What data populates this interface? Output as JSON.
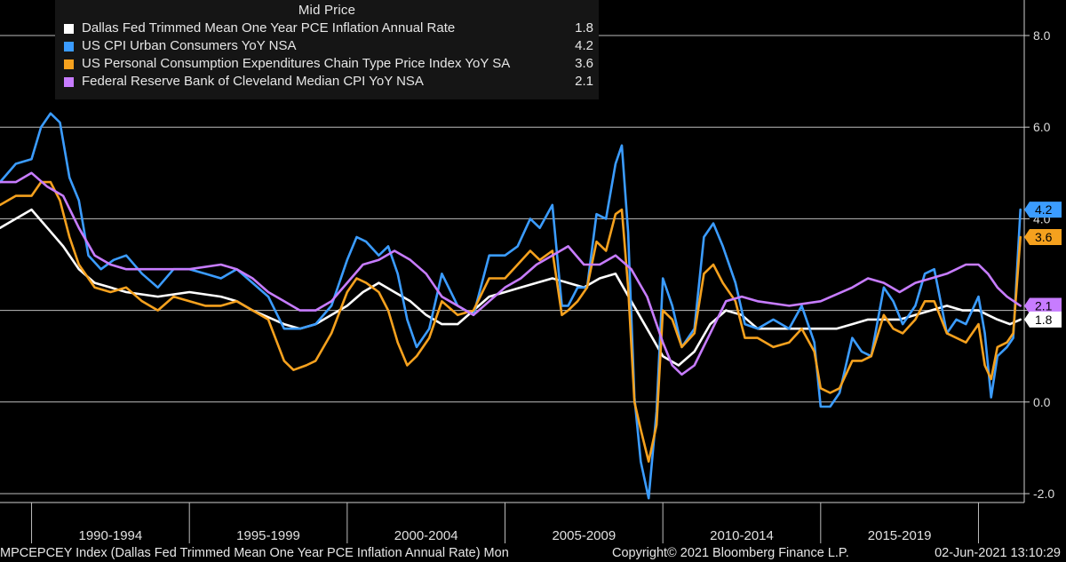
{
  "legend": {
    "title": "Mid Price",
    "items": [
      {
        "name": "Dallas Fed Trimmed Mean One Year PCE Inflation Annual Rate",
        "value": "1.8",
        "color": "#ffffff"
      },
      {
        "name": "US CPI Urban Consumers YoY NSA",
        "value": "4.2",
        "color": "#3b9cff"
      },
      {
        "name": "US Personal Consumption Expenditures Chain Type Price Index YoY SA",
        "value": "3.6",
        "color": "#f5a11e"
      },
      {
        "name": "Federal Reserve Bank of Cleveland Median CPI YoY NSA",
        "value": "2.1",
        "color": "#c77cff"
      }
    ]
  },
  "footer": {
    "ticker": "MPCEPCEY Index (Dallas Fed Trimmed Mean One Year PCE Inflation Annual Rate)  Mon",
    "copyright": "Copyright© 2021 Bloomberg Finance L.P.",
    "timestamp": "02-Jun-2021 13:10:29"
  },
  "chart_data": {
    "type": "line",
    "x_unit": "year",
    "xlim": [
      1989.0,
      2021.45
    ],
    "ylim": [
      -2.1,
      8.8
    ],
    "y_ticks": [
      8.0,
      6.0,
      4.0,
      2.0,
      0.0,
      -2.0
    ],
    "y_tick_labels": [
      "8.0",
      "6.0",
      "4.0",
      "2.0",
      "0.0",
      "-2.0"
    ],
    "x_periods": [
      {
        "label": "1990-1994",
        "start": 1990,
        "end": 1995
      },
      {
        "label": "1995-1999",
        "start": 1995,
        "end": 2000
      },
      {
        "label": "2000-2004",
        "start": 2000,
        "end": 2005
      },
      {
        "label": "2005-2009",
        "start": 2005,
        "end": 2010
      },
      {
        "label": "2010-2014",
        "start": 2010,
        "end": 2015
      },
      {
        "label": "2015-2019",
        "start": 2015,
        "end": 2020
      }
    ],
    "grid": true,
    "last_value_tags": [
      {
        "series": 1,
        "label": "4.2"
      },
      {
        "series": 2,
        "label": "3.6"
      },
      {
        "series": 3,
        "label": "2.1"
      },
      {
        "series": 0,
        "label": "1.8"
      }
    ],
    "series": [
      {
        "name": "Dallas Fed Trimmed Mean One Year PCE Inflation Annual Rate",
        "color": "#ffffff",
        "x": [
          1989.0,
          1989.5,
          1990.0,
          1990.5,
          1991.0,
          1991.5,
          1992.0,
          1992.5,
          1993.0,
          1994.0,
          1995.0,
          1996.0,
          1996.5,
          1997.0,
          1998.0,
          1998.5,
          1999.0,
          2000.0,
          2000.5,
          2001.0,
          2001.5,
          2002.0,
          2002.5,
          2003.0,
          2003.5,
          2004.0,
          2004.5,
          2005.0,
          2005.5,
          2006.0,
          2006.5,
          2007.0,
          2007.5,
          2008.0,
          2008.5,
          2009.0,
          2009.5,
          2010.0,
          2010.5,
          2011.0,
          2011.5,
          2012.0,
          2012.5,
          2013.0,
          2013.5,
          2014.0,
          2014.5,
          2015.0,
          2015.5,
          2016.0,
          2016.5,
          2017.0,
          2017.5,
          2018.0,
          2018.5,
          2019.0,
          2019.5,
          2020.0,
          2020.3,
          2020.6,
          2021.0,
          2021.33
        ],
        "y": [
          3.8,
          4.0,
          4.2,
          3.8,
          3.4,
          2.9,
          2.6,
          2.5,
          2.4,
          2.3,
          2.4,
          2.3,
          2.2,
          2.0,
          1.7,
          1.6,
          1.7,
          2.1,
          2.4,
          2.6,
          2.4,
          2.2,
          1.9,
          1.7,
          1.7,
          2.0,
          2.3,
          2.4,
          2.5,
          2.6,
          2.7,
          2.6,
          2.5,
          2.7,
          2.8,
          2.2,
          1.6,
          1.0,
          0.8,
          1.1,
          1.7,
          2.0,
          1.9,
          1.6,
          1.6,
          1.6,
          1.6,
          1.6,
          1.6,
          1.7,
          1.8,
          1.8,
          1.8,
          1.9,
          2.0,
          2.1,
          2.0,
          2.0,
          1.9,
          1.8,
          1.7,
          1.8
        ]
      },
      {
        "name": "US CPI Urban Consumers YoY NSA",
        "color": "#3b9cff",
        "x": [
          1989.0,
          1989.5,
          1990.0,
          1990.3,
          1990.6,
          1990.9,
          1991.2,
          1991.5,
          1991.8,
          1992.2,
          1992.6,
          1993.0,
          1993.5,
          1994.0,
          1994.5,
          1995.0,
          1995.5,
          1996.0,
          1996.5,
          1997.0,
          1997.5,
          1998.0,
          1998.5,
          1999.0,
          1999.5,
          2000.0,
          2000.3,
          2000.6,
          2001.0,
          2001.3,
          2001.6,
          2001.9,
          2002.2,
          2002.6,
          2003.0,
          2003.5,
          2004.0,
          2004.5,
          2005.0,
          2005.4,
          2005.8,
          2006.1,
          2006.5,
          2006.8,
          2007.0,
          2007.3,
          2007.6,
          2007.9,
          2008.2,
          2008.5,
          2008.7,
          2008.9,
          2009.1,
          2009.3,
          2009.55,
          2009.8,
          2010.0,
          2010.3,
          2010.6,
          2011.0,
          2011.3,
          2011.6,
          2011.9,
          2012.3,
          2012.6,
          2013.0,
          2013.5,
          2014.0,
          2014.4,
          2014.8,
          2015.0,
          2015.3,
          2015.6,
          2016.0,
          2016.3,
          2016.6,
          2017.0,
          2017.3,
          2017.6,
          2018.0,
          2018.3,
          2018.6,
          2019.0,
          2019.3,
          2019.6,
          2020.0,
          2020.2,
          2020.4,
          2020.6,
          2020.9,
          2021.1,
          2021.33
        ],
        "y": [
          4.8,
          5.2,
          5.3,
          6.0,
          6.3,
          6.1,
          4.9,
          4.4,
          3.2,
          2.9,
          3.1,
          3.2,
          2.8,
          2.5,
          2.9,
          2.9,
          2.8,
          2.7,
          2.9,
          2.6,
          2.3,
          1.6,
          1.6,
          1.7,
          2.1,
          3.1,
          3.6,
          3.5,
          3.2,
          3.4,
          2.8,
          1.8,
          1.2,
          1.6,
          2.8,
          2.1,
          1.9,
          3.2,
          3.2,
          3.4,
          4.0,
          3.8,
          4.3,
          2.1,
          2.1,
          2.5,
          2.5,
          4.1,
          4.0,
          5.2,
          5.6,
          3.7,
          0.1,
          -1.3,
          -2.1,
          -0.2,
          2.7,
          2.1,
          1.2,
          1.6,
          3.6,
          3.9,
          3.4,
          2.6,
          1.7,
          1.6,
          1.8,
          1.6,
          2.1,
          1.3,
          -0.1,
          -0.1,
          0.2,
          1.4,
          1.1,
          1.0,
          2.5,
          2.2,
          1.7,
          2.1,
          2.8,
          2.9,
          1.5,
          1.8,
          1.7,
          2.3,
          1.5,
          0.1,
          1.0,
          1.2,
          1.4,
          4.2
        ]
      },
      {
        "name": "US Personal Consumption Expenditures Chain Type Price Index YoY SA",
        "color": "#f5a11e",
        "x": [
          1989.0,
          1989.5,
          1990.0,
          1990.3,
          1990.6,
          1990.9,
          1991.2,
          1991.5,
          1992.0,
          1992.5,
          1993.0,
          1993.5,
          1994.0,
          1994.5,
          1995.0,
          1995.5,
          1996.0,
          1996.5,
          1997.0,
          1997.5,
          1998.0,
          1998.3,
          1998.7,
          1999.0,
          1999.5,
          2000.0,
          2000.3,
          2000.6,
          2001.0,
          2001.3,
          2001.6,
          2001.9,
          2002.2,
          2002.6,
          2003.0,
          2003.5,
          2004.0,
          2004.5,
          2005.0,
          2005.4,
          2005.8,
          2006.1,
          2006.5,
          2006.8,
          2007.0,
          2007.3,
          2007.6,
          2007.9,
          2008.2,
          2008.5,
          2008.7,
          2008.9,
          2009.1,
          2009.3,
          2009.55,
          2009.8,
          2010.0,
          2010.3,
          2010.6,
          2011.0,
          2011.3,
          2011.6,
          2011.9,
          2012.3,
          2012.6,
          2013.0,
          2013.5,
          2014.0,
          2014.4,
          2014.8,
          2015.0,
          2015.3,
          2015.6,
          2016.0,
          2016.3,
          2016.6,
          2017.0,
          2017.3,
          2017.6,
          2018.0,
          2018.3,
          2018.6,
          2019.0,
          2019.3,
          2019.6,
          2020.0,
          2020.2,
          2020.4,
          2020.6,
          2020.9,
          2021.1,
          2021.33
        ],
        "y": [
          4.3,
          4.5,
          4.5,
          4.8,
          4.8,
          4.4,
          3.6,
          3.0,
          2.5,
          2.4,
          2.5,
          2.2,
          2.0,
          2.3,
          2.2,
          2.1,
          2.1,
          2.2,
          2.0,
          1.8,
          0.9,
          0.7,
          0.8,
          0.9,
          1.5,
          2.4,
          2.7,
          2.6,
          2.4,
          2.0,
          1.3,
          0.8,
          1.0,
          1.4,
          2.2,
          1.9,
          2.0,
          2.7,
          2.7,
          3.0,
          3.3,
          3.1,
          3.3,
          1.9,
          2.0,
          2.2,
          2.5,
          3.5,
          3.3,
          4.1,
          4.2,
          2.5,
          0.0,
          -0.6,
          -1.3,
          -0.5,
          2.0,
          1.8,
          1.2,
          1.5,
          2.8,
          3.0,
          2.6,
          2.2,
          1.4,
          1.4,
          1.2,
          1.3,
          1.6,
          1.1,
          0.3,
          0.2,
          0.3,
          0.9,
          0.9,
          1.0,
          1.9,
          1.6,
          1.5,
          1.8,
          2.2,
          2.2,
          1.5,
          1.4,
          1.3,
          1.7,
          0.8,
          0.5,
          1.2,
          1.3,
          1.5,
          3.6
        ]
      },
      {
        "name": "Federal Reserve Bank of Cleveland Median CPI YoY NSA",
        "color": "#c77cff",
        "x": [
          1989.0,
          1989.5,
          1990.0,
          1990.5,
          1991.0,
          1991.5,
          1992.0,
          1992.5,
          1993.0,
          1994.0,
          1995.0,
          1996.0,
          1996.5,
          1997.0,
          1997.5,
          1998.0,
          1998.5,
          1999.0,
          1999.5,
          2000.0,
          2000.5,
          2001.0,
          2001.5,
          2002.0,
          2002.5,
          2003.0,
          2003.5,
          2004.0,
          2004.5,
          2005.0,
          2005.5,
          2006.0,
          2006.5,
          2007.0,
          2007.5,
          2008.0,
          2008.5,
          2009.0,
          2009.5,
          2010.0,
          2010.3,
          2010.6,
          2011.0,
          2011.5,
          2012.0,
          2012.5,
          2013.0,
          2014.0,
          2015.0,
          2016.0,
          2016.5,
          2017.0,
          2017.5,
          2018.0,
          2018.5,
          2019.0,
          2019.3,
          2019.6,
          2020.0,
          2020.3,
          2020.6,
          2020.9,
          2021.33
        ],
        "y": [
          4.8,
          4.8,
          5.0,
          4.7,
          4.5,
          3.8,
          3.2,
          3.0,
          2.9,
          2.9,
          2.9,
          3.0,
          2.9,
          2.7,
          2.4,
          2.2,
          2.0,
          2.0,
          2.2,
          2.6,
          3.0,
          3.1,
          3.3,
          3.1,
          2.8,
          2.3,
          2.1,
          1.9,
          2.2,
          2.5,
          2.7,
          3.0,
          3.2,
          3.4,
          3.0,
          3.0,
          3.2,
          2.9,
          2.3,
          1.3,
          0.8,
          0.6,
          0.8,
          1.5,
          2.2,
          2.3,
          2.2,
          2.1,
          2.2,
          2.5,
          2.7,
          2.6,
          2.4,
          2.6,
          2.7,
          2.8,
          2.9,
          3.0,
          3.0,
          2.8,
          2.5,
          2.3,
          2.1
        ]
      }
    ]
  }
}
